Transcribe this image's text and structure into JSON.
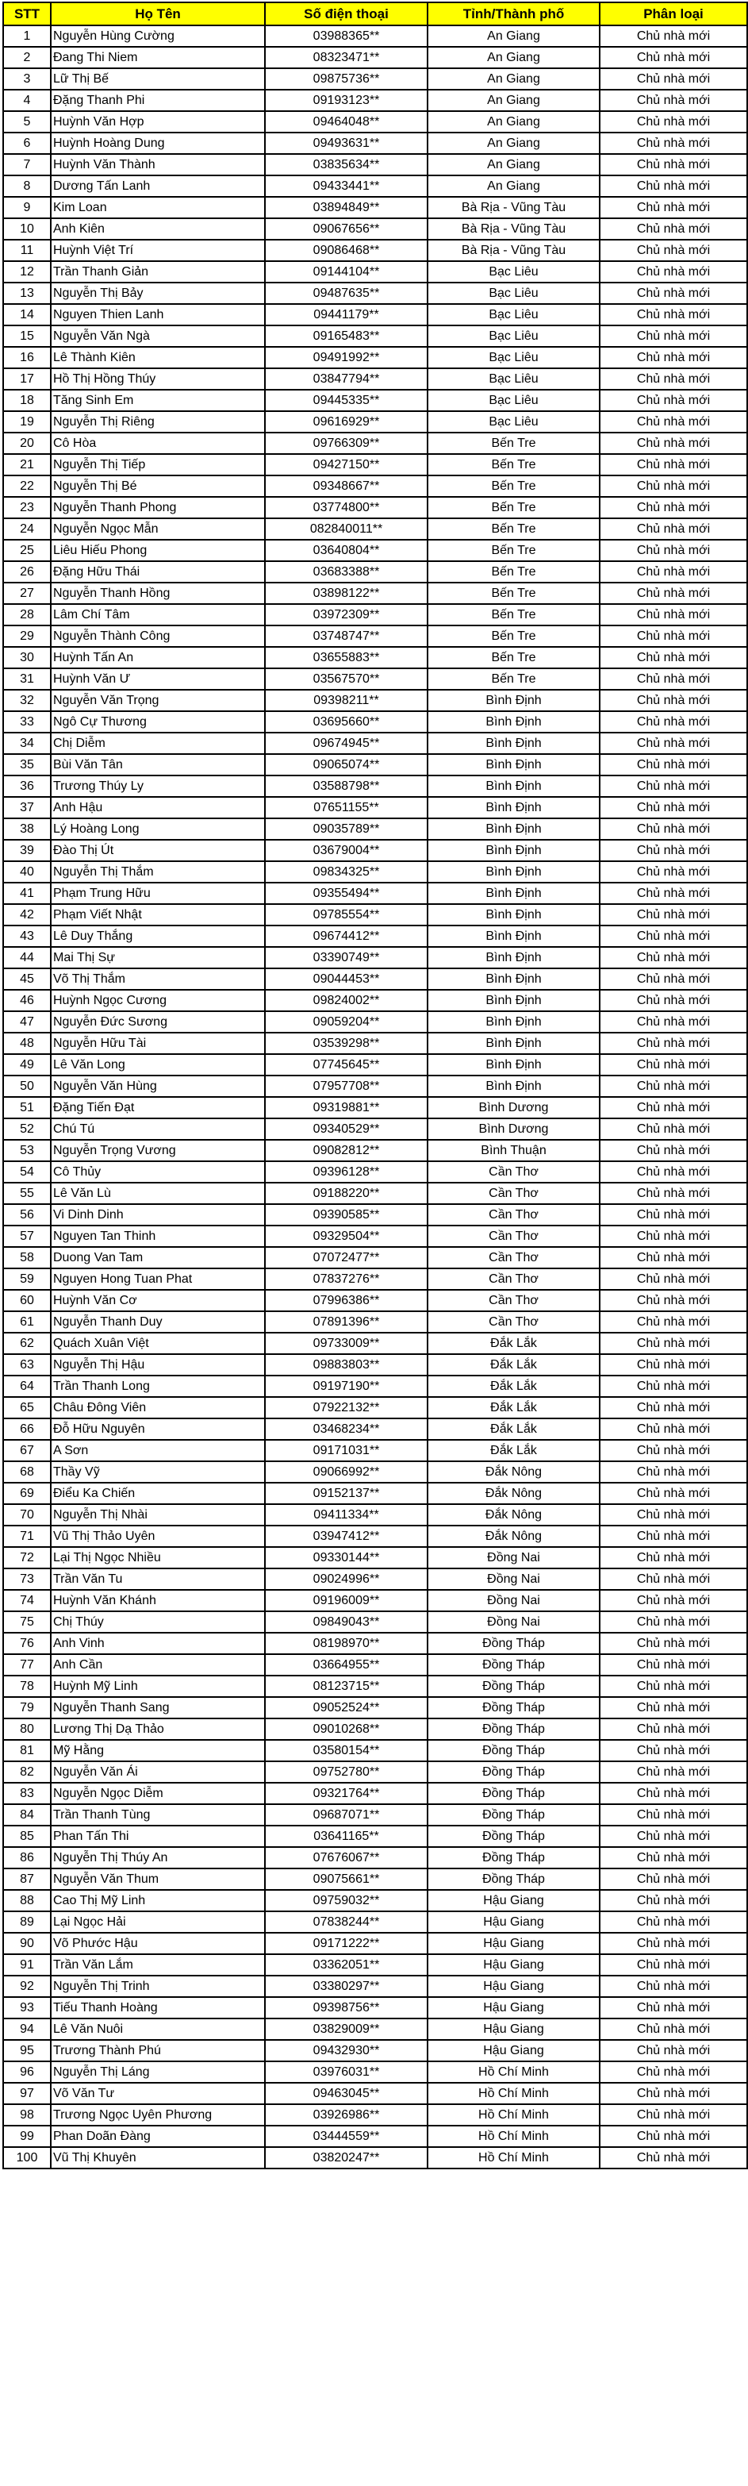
{
  "table": {
    "headers": [
      "STT",
      "Họ Tên",
      "Số điện thoại",
      "Tỉnh/Thành phố",
      "Phân loại"
    ],
    "colors": {
      "header_bg": "#FFFF00",
      "header_text": "#000000",
      "grid": "#000000",
      "cell_bg": "#FFFFFF",
      "cell_text": "#000000"
    },
    "rows": [
      [
        1,
        "Nguyễn Hùng Cường",
        "03988365**",
        "An Giang",
        "Chủ nhà mới"
      ],
      [
        2,
        "Đang Thi Niem",
        "08323471**",
        "An Giang",
        "Chủ nhà mới"
      ],
      [
        3,
        "Lữ Thị Bế",
        "09875736**",
        "An Giang",
        "Chủ nhà mới"
      ],
      [
        4,
        "Đặng Thanh Phi",
        "09193123**",
        "An Giang",
        "Chủ nhà mới"
      ],
      [
        5,
        "Huỳnh Văn Hợp",
        "09464048**",
        "An Giang",
        "Chủ nhà mới"
      ],
      [
        6,
        "Huỳnh Hoàng Dung",
        "09493631**",
        "An Giang",
        "Chủ nhà mới"
      ],
      [
        7,
        "Huỳnh Văn Thành",
        "03835634**",
        "An Giang",
        "Chủ nhà mới"
      ],
      [
        8,
        "Dương Tấn Lanh",
        "09433441**",
        "An Giang",
        "Chủ nhà mới"
      ],
      [
        9,
        "Kim Loan",
        "03894849**",
        "Bà Rịa - Vũng Tàu",
        "Chủ nhà mới"
      ],
      [
        10,
        "Anh Kiên",
        "09067656**",
        "Bà Rịa - Vũng Tàu",
        "Chủ nhà mới"
      ],
      [
        11,
        "Huỳnh Việt Trí",
        "09086468**",
        "Bà Rịa - Vũng Tàu",
        "Chủ nhà mới"
      ],
      [
        12,
        "Trần Thanh Giản",
        "09144104**",
        "Bạc Liêu",
        "Chủ nhà mới"
      ],
      [
        13,
        "Nguyễn Thị Bảy",
        "09487635**",
        "Bạc Liêu",
        "Chủ nhà mới"
      ],
      [
        14,
        "Nguyen Thien Lanh",
        "09441179**",
        "Bạc Liêu",
        "Chủ nhà mới"
      ],
      [
        15,
        "Nguyễn Văn Ngà",
        "09165483**",
        "Bạc Liêu",
        "Chủ nhà mới"
      ],
      [
        16,
        "Lê Thành Kiên",
        "09491992**",
        "Bạc Liêu",
        "Chủ nhà mới"
      ],
      [
        17,
        "Hồ Thị Hồng Thúy",
        "03847794**",
        "Bạc Liêu",
        "Chủ nhà mới"
      ],
      [
        18,
        "Tăng Sinh Em",
        "09445335**",
        "Bạc Liêu",
        "Chủ nhà mới"
      ],
      [
        19,
        "Nguyễn Thị Riêng",
        "09616929**",
        "Bạc Liêu",
        "Chủ nhà mới"
      ],
      [
        20,
        "Cô Hòa",
        "09766309**",
        "Bến Tre",
        "Chủ nhà mới"
      ],
      [
        21,
        "Nguyễn Thị Tiếp",
        "09427150**",
        "Bến Tre",
        "Chủ nhà mới"
      ],
      [
        22,
        "Nguyễn Thị Bé",
        "09348667**",
        "Bến Tre",
        "Chủ nhà mới"
      ],
      [
        23,
        "Nguyễn Thanh Phong",
        "03774800**",
        "Bến Tre",
        "Chủ nhà mới"
      ],
      [
        24,
        "Nguyễn Ngọc Mẫn",
        "082840011**",
        "Bến Tre",
        "Chủ nhà mới"
      ],
      [
        25,
        "Liêu Hiếu Phong",
        "03640804**",
        "Bến Tre",
        "Chủ nhà mới"
      ],
      [
        26,
        "Đặng Hữu Thái",
        "03683388**",
        "Bến Tre",
        "Chủ nhà mới"
      ],
      [
        27,
        "Nguyễn Thanh Hồng",
        "03898122**",
        "Bến Tre",
        "Chủ nhà mới"
      ],
      [
        28,
        "Lâm Chí Tâm",
        "03972309**",
        "Bến Tre",
        "Chủ nhà mới"
      ],
      [
        29,
        "Nguyễn Thành Công",
        "03748747**",
        "Bến Tre",
        "Chủ nhà mới"
      ],
      [
        30,
        "Huỳnh Tấn An",
        "03655883**",
        "Bến Tre",
        "Chủ nhà mới"
      ],
      [
        31,
        "Huỳnh Văn Ư",
        "03567570**",
        "Bến Tre",
        "Chủ nhà mới"
      ],
      [
        32,
        "Nguyễn Văn Trọng",
        "09398211**",
        "Bình Định",
        "Chủ nhà mới"
      ],
      [
        33,
        "Ngô Cự Thương",
        "03695660**",
        "Bình Định",
        "Chủ nhà mới"
      ],
      [
        34,
        "Chị Diễm",
        "09674945**",
        "Bình Định",
        "Chủ nhà mới"
      ],
      [
        35,
        "Bùi Văn Tân",
        "09065074**",
        "Bình Định",
        "Chủ nhà mới"
      ],
      [
        36,
        "Trương Thúy Ly",
        "03588798**",
        "Bình Định",
        "Chủ nhà mới"
      ],
      [
        37,
        "Anh Hậu",
        "07651155**",
        "Bình Định",
        "Chủ nhà mới"
      ],
      [
        38,
        "Lý Hoàng Long",
        "09035789**",
        "Bình Định",
        "Chủ nhà mới"
      ],
      [
        39,
        "Đào Thị Út",
        "03679004**",
        "Bình Định",
        "Chủ nhà mới"
      ],
      [
        40,
        "Nguyễn Thị Thắm",
        "09834325**",
        "Bình Định",
        "Chủ nhà mới"
      ],
      [
        41,
        "Phạm Trung Hữu",
        "09355494**",
        "Bình Định",
        "Chủ nhà mới"
      ],
      [
        42,
        "Phạm Viết Nhật",
        "09785554**",
        "Bình Định",
        "Chủ nhà mới"
      ],
      [
        43,
        "Lê Duy Thắng",
        "09674412**",
        "Bình Định",
        "Chủ nhà mới"
      ],
      [
        44,
        "Mai Thị Sự",
        "03390749**",
        "Bình Định",
        "Chủ nhà mới"
      ],
      [
        45,
        "Võ Thị Thắm",
        "09044453**",
        "Bình Định",
        "Chủ nhà mới"
      ],
      [
        46,
        "Huỳnh Ngọc Cương",
        "09824002**",
        "Bình Định",
        "Chủ nhà mới"
      ],
      [
        47,
        "Nguyễn Đức Sương",
        "09059204**",
        "Bình Định",
        "Chủ nhà mới"
      ],
      [
        48,
        "Nguyễn Hữu Tài",
        "03539298**",
        "Bình Định",
        "Chủ nhà mới"
      ],
      [
        49,
        "Lê Văn Long",
        "07745645**",
        "Bình Định",
        "Chủ nhà mới"
      ],
      [
        50,
        "Nguyễn Văn Hùng",
        "07957708**",
        "Bình Định",
        "Chủ nhà mới"
      ],
      [
        51,
        "Đặng Tiến Đạt",
        "09319881**",
        "Bình Dương",
        "Chủ nhà mới"
      ],
      [
        52,
        "Chú Tú",
        "09340529**",
        "Bình Dương",
        "Chủ nhà mới"
      ],
      [
        53,
        "Nguyễn Trọng Vương",
        "09082812**",
        "Bình Thuận",
        "Chủ nhà mới"
      ],
      [
        54,
        "Cô Thủy",
        "09396128**",
        "Cần Thơ",
        "Chủ nhà mới"
      ],
      [
        55,
        "Lê Văn Lù",
        "09188220**",
        "Cần Thơ",
        "Chủ nhà mới"
      ],
      [
        56,
        "Vi Dinh Dinh",
        "09390585**",
        "Cần Thơ",
        "Chủ nhà mới"
      ],
      [
        57,
        "Nguyen Tan Thinh",
        "09329504**",
        "Cần Thơ",
        "Chủ nhà mới"
      ],
      [
        58,
        "Duong Van Tam",
        "07072477**",
        "Cần Thơ",
        "Chủ nhà mới"
      ],
      [
        59,
        "Nguyen Hong Tuan Phat",
        "07837276**",
        "Cần Thơ",
        "Chủ nhà mới"
      ],
      [
        60,
        "Huỳnh Văn Cơ",
        "07996386**",
        "Cần Thơ",
        "Chủ nhà mới"
      ],
      [
        61,
        "Nguyễn Thanh Duy",
        "07891396**",
        "Cần Thơ",
        "Chủ nhà mới"
      ],
      [
        62,
        "Quách Xuân Việt",
        "09733009**",
        "Đắk Lắk",
        "Chủ nhà mới"
      ],
      [
        63,
        "Nguyễn Thị Hậu",
        "09883803**",
        "Đắk Lắk",
        "Chủ nhà mới"
      ],
      [
        64,
        "Trần Thanh Long",
        "09197190**",
        "Đắk Lắk",
        "Chủ nhà mới"
      ],
      [
        65,
        "Châu Đông Viên",
        "07922132**",
        "Đắk Lắk",
        "Chủ nhà mới"
      ],
      [
        66,
        "Đỗ Hữu Nguyên",
        "03468234**",
        "Đắk Lắk",
        "Chủ nhà mới"
      ],
      [
        67,
        "A Sơn",
        "09171031**",
        "Đắk Lắk",
        "Chủ nhà mới"
      ],
      [
        68,
        "Thầy Vỹ",
        "09066992**",
        "Đắk Nông",
        "Chủ nhà mới"
      ],
      [
        69,
        "Điểu Ka Chiến",
        "09152137**",
        "Đắk Nông",
        "Chủ nhà mới"
      ],
      [
        70,
        "Nguyễn Thị Nhài",
        "09411334**",
        "Đắk Nông",
        "Chủ nhà mới"
      ],
      [
        71,
        "Vũ Thị Thảo Uyên",
        "03947412**",
        "Đắk Nông",
        "Chủ nhà mới"
      ],
      [
        72,
        "Lại Thị Ngọc Nhiều",
        "09330144**",
        "Đồng Nai",
        "Chủ nhà mới"
      ],
      [
        73,
        "Trần Văn Tu",
        "09024996**",
        "Đồng Nai",
        "Chủ nhà mới"
      ],
      [
        74,
        "Huỳnh Văn Khánh",
        "09196009**",
        "Đồng Nai",
        "Chủ nhà mới"
      ],
      [
        75,
        "Chị Thúy",
        "09849043**",
        "Đồng Nai",
        "Chủ nhà mới"
      ],
      [
        76,
        "Anh Vinh",
        "08198970**",
        "Đồng Tháp",
        "Chủ nhà mới"
      ],
      [
        77,
        "Anh Cần",
        "03664955**",
        "Đồng Tháp",
        "Chủ nhà mới"
      ],
      [
        78,
        "Huỳnh Mỹ Linh",
        "08123715**",
        "Đồng Tháp",
        "Chủ nhà mới"
      ],
      [
        79,
        "Nguyễn Thanh Sang",
        "09052524**",
        "Đồng Tháp",
        "Chủ nhà mới"
      ],
      [
        80,
        "Lương Thị Dạ Thảo",
        "09010268**",
        "Đồng Tháp",
        "Chủ nhà mới"
      ],
      [
        81,
        "Mỹ Hằng",
        "03580154**",
        "Đồng Tháp",
        "Chủ nhà mới"
      ],
      [
        82,
        "Nguyễn Văn Ái",
        "09752780**",
        "Đồng Tháp",
        "Chủ nhà mới"
      ],
      [
        83,
        "Nguyễn Ngọc Diễm",
        "09321764**",
        "Đồng Tháp",
        "Chủ nhà mới"
      ],
      [
        84,
        "Trần Thanh Tùng",
        "09687071**",
        "Đồng Tháp",
        "Chủ nhà mới"
      ],
      [
        85,
        "Phan Tấn Thi",
        "03641165**",
        "Đồng Tháp",
        "Chủ nhà mới"
      ],
      [
        86,
        "Nguyễn Thị Thúy An",
        "07676067**",
        "Đồng Tháp",
        "Chủ nhà mới"
      ],
      [
        87,
        "Nguyễn Văn Thum",
        "09075661**",
        "Đồng Tháp",
        "Chủ nhà mới"
      ],
      [
        88,
        "Cao Thị Mỹ Linh",
        "09759032**",
        "Hậu Giang",
        "Chủ nhà mới"
      ],
      [
        89,
        "Lại Ngọc Hải",
        "07838244**",
        "Hậu Giang",
        "Chủ nhà mới"
      ],
      [
        90,
        "Võ Phước Hậu",
        "09171222**",
        "Hậu Giang",
        "Chủ nhà mới"
      ],
      [
        91,
        "Trần Văn Lắm",
        "03362051**",
        "Hậu Giang",
        "Chủ nhà mới"
      ],
      [
        92,
        "Nguyễn Thị Trinh",
        "03380297**",
        "Hậu Giang",
        "Chủ nhà mới"
      ],
      [
        93,
        "Tiếu Thanh Hoàng",
        "09398756**",
        "Hậu Giang",
        "Chủ nhà mới"
      ],
      [
        94,
        "Lê Văn Nuôi",
        "03829009**",
        "Hậu Giang",
        "Chủ nhà mới"
      ],
      [
        95,
        "Trương Thành Phú",
        "09432930**",
        "Hậu Giang",
        "Chủ nhà mới"
      ],
      [
        96,
        "Nguyễn Thị Láng",
        "03976031**",
        "Hồ Chí Minh",
        "Chủ nhà mới"
      ],
      [
        97,
        "Võ Văn Tư",
        "09463045**",
        "Hồ Chí Minh",
        "Chủ nhà mới"
      ],
      [
        98,
        "Trương Ngọc Uyên Phương",
        "03926986**",
        "Hồ Chí Minh",
        "Chủ nhà mới"
      ],
      [
        99,
        "Phan Doãn Đàng",
        "03444559**",
        "Hồ Chí Minh",
        "Chủ nhà mới"
      ],
      [
        100,
        "Vũ Thị Khuyên",
        "03820247**",
        "Hồ Chí Minh",
        "Chủ nhà mới"
      ]
    ]
  }
}
